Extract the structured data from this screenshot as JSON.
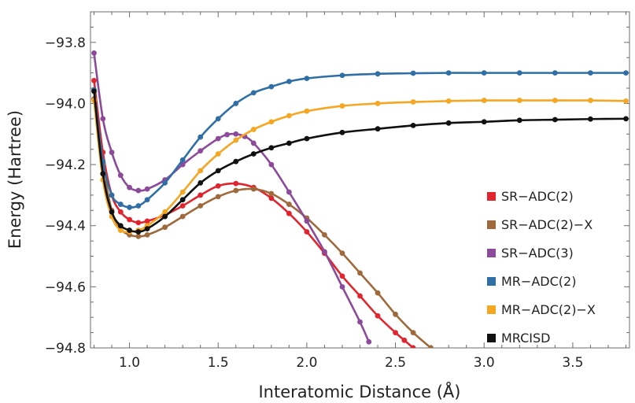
{
  "chart_data": {
    "type": "line",
    "xlabel": "Interatomic Distance (Å)",
    "ylabel": "Energy (Hartree)",
    "xlim": [
      0.78,
      3.82
    ],
    "ylim": [
      -94.8,
      -93.7
    ],
    "x_ticks": [
      "1.0",
      "1.5",
      "2.0",
      "2.5",
      "3.0",
      "3.5"
    ],
    "x_tick_values": [
      1.0,
      1.5,
      2.0,
      2.5,
      3.0,
      3.5
    ],
    "y_ticks": [
      "−93.8",
      "−94.0",
      "−94.2",
      "−94.4",
      "−94.6",
      "−94.8"
    ],
    "y_tick_values": [
      -93.8,
      -94.0,
      -94.2,
      -94.4,
      -94.6,
      -94.8
    ],
    "grid": false,
    "legend_position": "right-center",
    "series": [
      {
        "name": "SR−ADC(2)",
        "color": "#e0252e",
        "x": [
          0.8,
          0.85,
          0.9,
          0.95,
          1.0,
          1.05,
          1.1,
          1.2,
          1.3,
          1.4,
          1.5,
          1.6,
          1.7,
          1.8,
          1.9,
          2.0,
          2.1,
          2.2,
          2.3,
          2.4,
          2.5,
          2.55,
          2.6
        ],
        "y": [
          -93.925,
          -94.16,
          -94.3,
          -94.355,
          -94.38,
          -94.39,
          -94.385,
          -94.365,
          -94.335,
          -94.3,
          -94.27,
          -94.262,
          -94.275,
          -94.31,
          -94.36,
          -94.42,
          -94.49,
          -94.565,
          -94.63,
          -94.695,
          -94.75,
          -94.775,
          -94.8
        ]
      },
      {
        "name": "SR−ADC(2)−X",
        "color": "#9e6a3c",
        "x": [
          0.8,
          0.85,
          0.9,
          0.95,
          1.0,
          1.05,
          1.1,
          1.2,
          1.3,
          1.4,
          1.5,
          1.6,
          1.7,
          1.8,
          1.9,
          2.0,
          2.1,
          2.2,
          2.3,
          2.4,
          2.5,
          2.6,
          2.7
        ],
        "y": [
          -93.985,
          -94.2,
          -94.35,
          -94.41,
          -94.43,
          -94.435,
          -94.43,
          -94.405,
          -94.37,
          -94.335,
          -94.305,
          -94.285,
          -94.28,
          -94.295,
          -94.33,
          -94.375,
          -94.43,
          -94.49,
          -94.555,
          -94.62,
          -94.69,
          -94.75,
          -94.8
        ]
      },
      {
        "name": "SR−ADC(3)",
        "color": "#8b4a9a",
        "x": [
          0.8,
          0.85,
          0.9,
          0.95,
          1.0,
          1.05,
          1.1,
          1.2,
          1.3,
          1.4,
          1.5,
          1.55,
          1.6,
          1.65,
          1.7,
          1.8,
          1.9,
          2.0,
          2.1,
          2.2,
          2.3,
          2.35
        ],
        "y": [
          -93.835,
          -94.05,
          -94.16,
          -94.235,
          -94.275,
          -94.285,
          -94.28,
          -94.25,
          -94.2,
          -94.155,
          -94.115,
          -94.102,
          -94.1,
          -94.108,
          -94.13,
          -94.2,
          -94.29,
          -94.385,
          -94.485,
          -94.6,
          -94.715,
          -94.78
        ]
      },
      {
        "name": "MR−ADC(2)",
        "color": "#2f6fa6",
        "x": [
          0.8,
          0.85,
          0.9,
          0.95,
          1.0,
          1.05,
          1.1,
          1.2,
          1.3,
          1.4,
          1.5,
          1.6,
          1.7,
          1.8,
          1.9,
          2.0,
          2.2,
          2.4,
          2.6,
          2.8,
          3.0,
          3.2,
          3.4,
          3.6,
          3.8
        ],
        "y": [
          -93.955,
          -94.19,
          -94.3,
          -94.33,
          -94.34,
          -94.335,
          -94.315,
          -94.26,
          -94.185,
          -94.11,
          -94.05,
          -94.0,
          -93.965,
          -93.945,
          -93.928,
          -93.918,
          -93.908,
          -93.903,
          -93.901,
          -93.9,
          -93.9,
          -93.9,
          -93.9,
          -93.9,
          -93.9
        ]
      },
      {
        "name": "MR−ADC(2)−X",
        "color": "#f5a623",
        "x": [
          0.8,
          0.85,
          0.9,
          0.95,
          1.0,
          1.05,
          1.1,
          1.2,
          1.3,
          1.4,
          1.5,
          1.6,
          1.7,
          1.8,
          1.9,
          2.0,
          2.2,
          2.4,
          2.6,
          2.8,
          3.0,
          3.2,
          3.4,
          3.6,
          3.8
        ],
        "y": [
          -93.99,
          -94.25,
          -94.37,
          -94.415,
          -94.42,
          -94.415,
          -94.4,
          -94.355,
          -94.29,
          -94.22,
          -94.165,
          -94.12,
          -94.085,
          -94.06,
          -94.04,
          -94.025,
          -94.008,
          -94.0,
          -93.995,
          -93.992,
          -93.99,
          -93.99,
          -93.99,
          -93.99,
          -93.992
        ]
      },
      {
        "name": "MRCISD",
        "color": "#111111",
        "x": [
          0.8,
          0.85,
          0.9,
          0.95,
          1.0,
          1.05,
          1.1,
          1.2,
          1.3,
          1.4,
          1.5,
          1.6,
          1.7,
          1.8,
          1.9,
          2.0,
          2.2,
          2.4,
          2.6,
          2.8,
          3.0,
          3.2,
          3.4,
          3.6,
          3.8
        ],
        "y": [
          -93.96,
          -94.23,
          -94.355,
          -94.4,
          -94.415,
          -94.42,
          -94.41,
          -94.37,
          -94.315,
          -94.26,
          -94.22,
          -94.19,
          -94.165,
          -94.145,
          -94.13,
          -94.115,
          -94.095,
          -94.083,
          -94.072,
          -94.064,
          -94.06,
          -94.055,
          -94.053,
          -94.051,
          -94.05
        ]
      }
    ]
  }
}
